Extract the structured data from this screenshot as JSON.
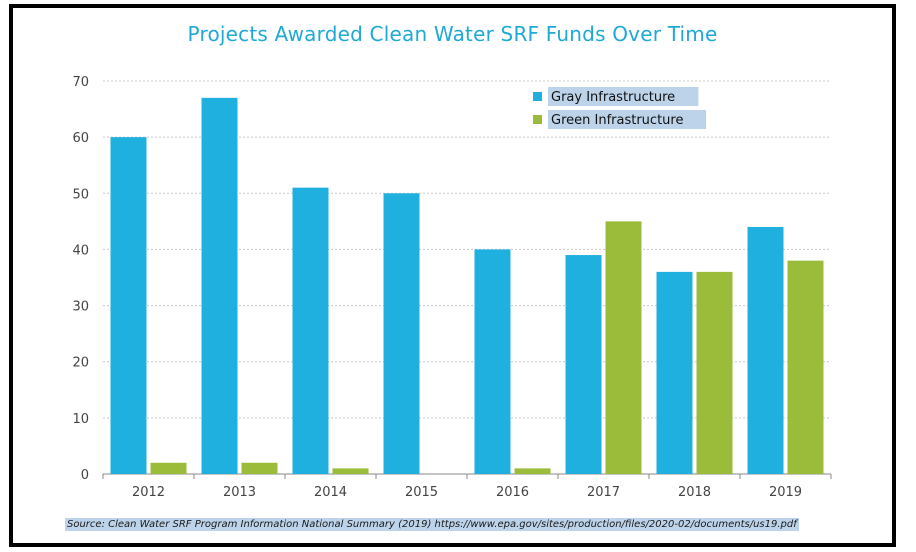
{
  "chart_data": {
    "type": "bar",
    "title": "Projects Awarded Clean Water SRF Funds Over Time",
    "categories": [
      "2012",
      "2013",
      "2014",
      "2015",
      "2016",
      "2017",
      "2018",
      "2019"
    ],
    "series": [
      {
        "name": "Gray Infrastructure",
        "color": "#1fb0df",
        "values": [
          60,
          67,
          51,
          50,
          40,
          39,
          36,
          44
        ]
      },
      {
        "name": "Green Infrastructure",
        "color": "#9bbb3b",
        "values": [
          2,
          2,
          1,
          0,
          1,
          45,
          36,
          38
        ]
      }
    ],
    "ylim": [
      0,
      70
    ],
    "yticks": [
      0,
      10,
      20,
      30,
      40,
      50,
      60,
      70
    ],
    "ytick_labels": [
      "0",
      "10",
      "20",
      "30",
      "40",
      "50",
      "60",
      "70"
    ],
    "xlabel": "",
    "ylabel": "",
    "grid": true,
    "legend_position": "top-right"
  },
  "source_text": "Source: Clean Water SRF Program Information National Summary (2019) https://www.epa.gov/sites/production/files/2020-02/documents/us19.pdf"
}
